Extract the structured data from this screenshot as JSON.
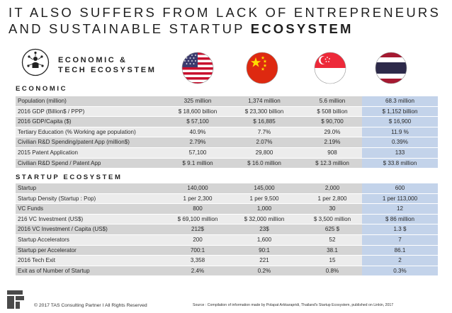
{
  "title": {
    "line1": "IT ALSO SUFFERS FROM LACK OF ENTREPRENEURS",
    "line2_prefix": "AND SUSTAINABLE STARTUP ",
    "line2_bold": "ECOSYSTEM"
  },
  "eco_box": {
    "line1": "ECONOMIC &",
    "line2": "TECH ECOSYSTEM"
  },
  "flags": [
    "usa-flag-icon",
    "china-flag-icon",
    "singapore-flag-icon",
    "thailand-flag-icon"
  ],
  "colors": {
    "highlight_column": "#c3d3ea",
    "row_dark": "#d4d4d4",
    "row_light": "#ececec"
  },
  "economic": {
    "heading": "ECONOMIC",
    "rows": [
      {
        "label": "Population (million)",
        "usa": "325 million",
        "china": "1,374 million",
        "singapore": "5.6 million",
        "thailand": "68.3 million"
      },
      {
        "label": "2016 GDP (Billion$ / PPP)",
        "usa": "$ 18,600 billion",
        "china": "$ 23,300 billion",
        "singapore": "$ 508 billion",
        "thailand": "$ 1,152 billion"
      },
      {
        "label": "2016 GDP/Capita ($)",
        "usa": "$ 57,100",
        "china": "$ 16,885",
        "singapore": "$ 90,700",
        "thailand": "$ 16,900"
      },
      {
        "label": "Tertiary Education (% Working age population)",
        "usa": "40.9%",
        "china": "7.7%",
        "singapore": "29.0%",
        "thailand": "11.9 %"
      },
      {
        "label": "Civilian R&D Spending/patent App (million$)",
        "usa": "2.79%",
        "china": "2.07%",
        "singapore": "2.19%",
        "thailand": "0.39%"
      },
      {
        "label": "2015 Patent Application",
        "usa": "57,100",
        "china": "29,800",
        "singapore": "908",
        "thailand": "133"
      },
      {
        "label": "Civilian R&D Spend / Patent App",
        "usa": "$ 9.1 million",
        "china": "$ 16.0 million",
        "singapore": "$ 12.3 million",
        "thailand": "$ 33.8 million"
      }
    ]
  },
  "startup": {
    "heading": "STARTUP ECOSYSTEM",
    "rows": [
      {
        "label": "Startup",
        "usa": "140,000",
        "china": "145,000",
        "singapore": "2,000",
        "thailand": "600"
      },
      {
        "label": "Startup Density (Startup : Pop)",
        "usa": "1 per 2,300",
        "china": "1 per 9,500",
        "singapore": "1 per 2,800",
        "thailand": "1 per 113,000"
      },
      {
        "label": "VC Funds",
        "usa": "800",
        "china": "1,000",
        "singapore": "30",
        "thailand": "12"
      },
      {
        "label": "216 VC Investment (US$)",
        "usa": "$ 69,100 million",
        "china": "$ 32,000 million",
        "singapore": "$ 3,500 million",
        "thailand": "$ 86 million"
      },
      {
        "label": "2016 VC Investment / Capita (US$)",
        "usa": "212$",
        "china": "23$",
        "singapore": "625 $",
        "thailand": "1.3 $"
      },
      {
        "label": "Startup Accelerators",
        "usa": "200",
        "china": "1,600",
        "singapore": "52",
        "thailand": "7"
      },
      {
        "label": "Startup per Accelerator",
        "usa": "700:1",
        "china": "90:1",
        "singapore": "38.1",
        "thailand": "86.1"
      },
      {
        "label": "2016 Tech Exit",
        "usa": "3,358",
        "china": "221",
        "singapore": "15",
        "thailand": "2"
      },
      {
        "label": "Exit as of Number of Startup",
        "usa": "2.4%",
        "china": "0.2%",
        "singapore": "0.8%",
        "thailand": "0.3%"
      }
    ]
  },
  "footer": {
    "copyright": "© 2017 TAS Consulting Partner  I  All Rights Reserved",
    "source": "Source :  Compilation of information made by Polapat Arkkarapridi,  Thailand's Startup Ecosystem,  published on Linkin,  2017"
  }
}
